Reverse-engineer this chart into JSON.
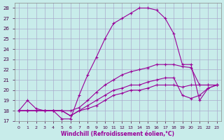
{
  "xlabel": "Windchill (Refroidissement éolien,°C)",
  "xlim": [
    -0.5,
    23.5
  ],
  "ylim": [
    17,
    28.5
  ],
  "xticks": [
    0,
    1,
    2,
    3,
    4,
    5,
    6,
    7,
    8,
    9,
    10,
    11,
    12,
    13,
    14,
    15,
    16,
    17,
    18,
    19,
    20,
    21,
    22,
    23
  ],
  "yticks": [
    17,
    18,
    19,
    20,
    21,
    22,
    23,
    24,
    25,
    26,
    27,
    28
  ],
  "bg_color": "#c8ecea",
  "grid_color": "#aaaacc",
  "line_color": "#990099",
  "curves": [
    {
      "x": [
        0,
        1,
        2,
        3,
        4,
        5,
        6,
        7,
        8,
        9,
        10,
        11,
        12,
        13,
        14,
        15,
        16,
        17,
        18,
        19,
        20,
        21,
        22,
        23
      ],
      "y": [
        18,
        19,
        18.2,
        18,
        18,
        17.2,
        17.2,
        19.5,
        21.5,
        23.2,
        25.0,
        26.5,
        27.0,
        27.5,
        28.0,
        28.0,
        27.8,
        27.0,
        25.5,
        22.5,
        22.5,
        19.0,
        20.2,
        20.5
      ]
    },
    {
      "x": [
        0,
        1,
        2,
        3,
        4,
        5,
        6,
        7,
        8,
        9,
        10,
        11,
        12,
        13,
        14,
        15,
        16,
        17,
        18,
        19,
        20,
        21,
        22,
        23
      ],
      "y": [
        18,
        18,
        18,
        18,
        18,
        18,
        18,
        18.3,
        19.0,
        19.8,
        20.5,
        21.0,
        21.5,
        21.8,
        22.0,
        22.2,
        22.5,
        22.5,
        22.5,
        22.3,
        22.2,
        20.5,
        20.5,
        20.5
      ]
    },
    {
      "x": [
        0,
        1,
        2,
        3,
        4,
        5,
        6,
        7,
        8,
        9,
        10,
        11,
        12,
        13,
        14,
        15,
        16,
        17,
        18,
        19,
        20,
        21,
        22,
        23
      ],
      "y": [
        18,
        18,
        18,
        18,
        18,
        18,
        17.5,
        18.0,
        18.5,
        19.0,
        19.5,
        20.0,
        20.2,
        20.5,
        20.5,
        20.8,
        21.0,
        21.2,
        21.2,
        19.5,
        19.2,
        19.5,
        20.2,
        20.5
      ]
    },
    {
      "x": [
        0,
        1,
        2,
        3,
        4,
        5,
        6,
        7,
        8,
        9,
        10,
        11,
        12,
        13,
        14,
        15,
        16,
        17,
        18,
        19,
        20,
        21,
        22,
        23
      ],
      "y": [
        18,
        18,
        18,
        18,
        18,
        18,
        17.5,
        18.0,
        18.2,
        18.5,
        19.0,
        19.5,
        19.7,
        20.0,
        20.0,
        20.2,
        20.5,
        20.5,
        20.5,
        20.3,
        20.5,
        20.5,
        20.5,
        20.5
      ]
    }
  ]
}
